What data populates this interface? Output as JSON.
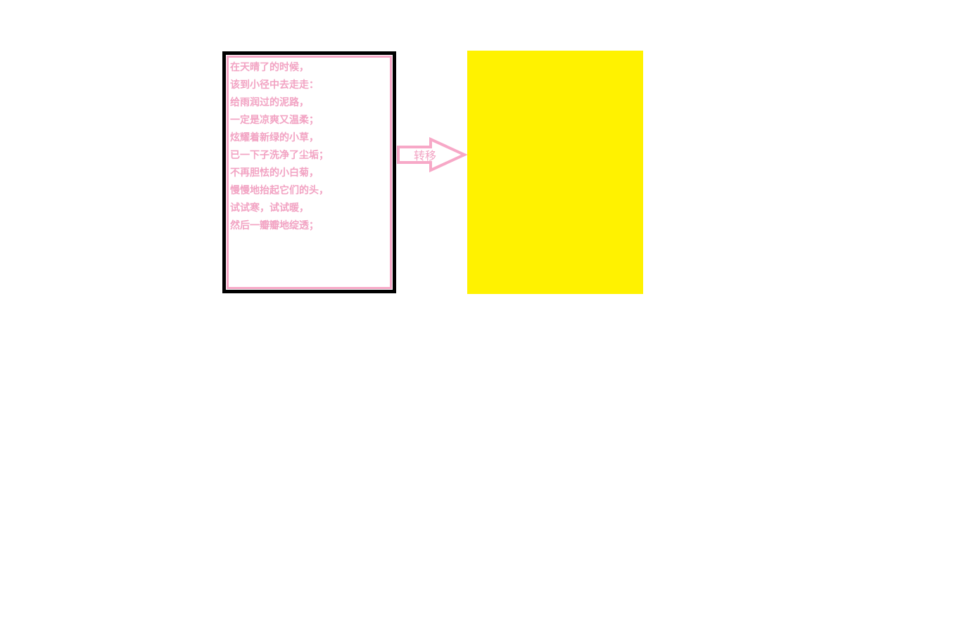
{
  "source": {
    "lines": [
      "在天晴了的时候，",
      "该到小径中去走走：",
      "给雨润过的泥路，",
      "一定是凉爽又温柔；",
      "炫耀着新绿的小草，",
      "已一下子洗净了尘垢；",
      "不再胆怯的小白菊，",
      "慢慢地抬起它们的头，",
      "试试寒，试试暖，",
      "然后一瓣瓣地绽透；"
    ]
  },
  "transfer": {
    "label": "转移"
  },
  "colors": {
    "text_pink": "#f2a3c3",
    "border_pink": "#f7a8c7",
    "target_yellow": "#fff200",
    "outer_border": "#000000"
  },
  "icons": {
    "transfer": "arrow-right-icon"
  }
}
